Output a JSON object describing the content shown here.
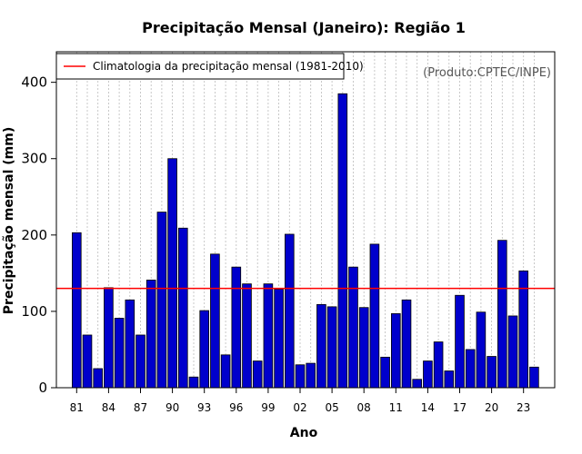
{
  "chart_data": {
    "type": "bar",
    "title": "Precipitação Mensal (Janeiro): Região 1",
    "xlabel": "Ano",
    "ylabel": "Precipitação mensal (mm)",
    "credit": "(Produto:CPTEC/INPE)",
    "ylim": [
      0,
      440
    ],
    "yticks": [
      0,
      100,
      200,
      300,
      400
    ],
    "years": [
      1981,
      1982,
      1983,
      1984,
      1985,
      1986,
      1987,
      1988,
      1989,
      1990,
      1991,
      1992,
      1993,
      1994,
      1995,
      1996,
      1997,
      1998,
      1999,
      2000,
      2001,
      2002,
      2003,
      2004,
      2005,
      2006,
      2007,
      2008,
      2009,
      2010,
      2011,
      2012,
      2013,
      2014,
      2015,
      2016,
      2017,
      2018,
      2019,
      2020,
      2021,
      2022,
      2023,
      2024
    ],
    "xtick_labels": [
      {
        "index": 0,
        "label": "81"
      },
      {
        "index": 3,
        "label": "84"
      },
      {
        "index": 6,
        "label": "87"
      },
      {
        "index": 9,
        "label": "90"
      },
      {
        "index": 12,
        "label": "93"
      },
      {
        "index": 15,
        "label": "96"
      },
      {
        "index": 18,
        "label": "99"
      },
      {
        "index": 21,
        "label": "02"
      },
      {
        "index": 24,
        "label": "05"
      },
      {
        "index": 27,
        "label": "08"
      },
      {
        "index": 30,
        "label": "11"
      },
      {
        "index": 33,
        "label": "14"
      },
      {
        "index": 36,
        "label": "17"
      },
      {
        "index": 39,
        "label": "20"
      },
      {
        "index": 42,
        "label": "23"
      }
    ],
    "values": [
      203,
      69,
      25,
      131,
      91,
      115,
      69,
      141,
      230,
      300,
      209,
      14,
      101,
      175,
      43,
      158,
      136,
      35,
      136,
      129,
      201,
      30,
      32,
      109,
      106,
      385,
      158,
      105,
      188,
      40,
      97,
      115,
      11,
      35,
      60,
      22,
      121,
      50,
      99,
      41,
      193,
      94,
      153,
      27
    ],
    "climatology": {
      "label": "Climatologia da precipitação mensal (1981-2010)",
      "value": 130
    },
    "bar_color": "#0000cc",
    "line_color": "#ff0000",
    "grid_color": "#bbbbbb"
  }
}
